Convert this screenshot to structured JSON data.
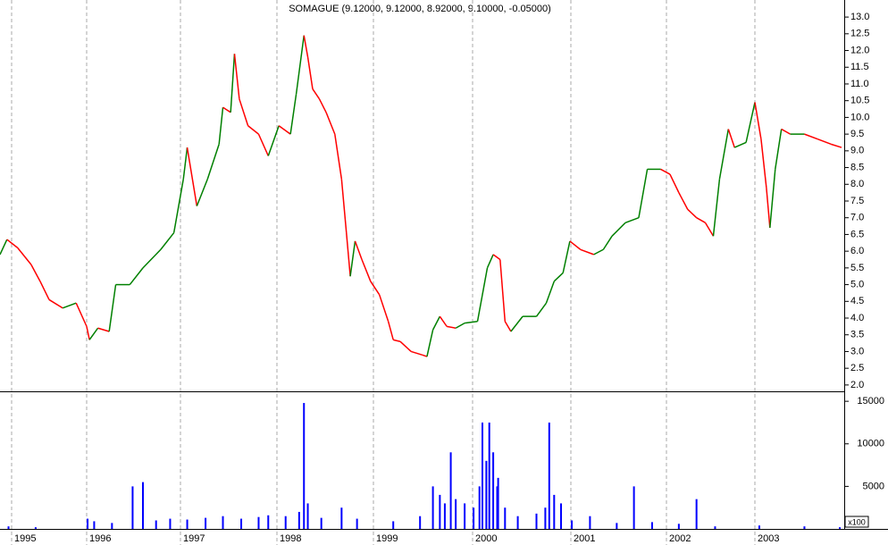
{
  "chart_data": [
    {
      "type": "line",
      "title": "SOMAGUE (9.12000, 9.12000, 8.92000, 9.10000, -0.05000)",
      "x": [
        1994.85,
        1994.94,
        1995.08,
        1995.26,
        1995.38,
        1995.5,
        1995.68,
        1995.86,
        1996.0,
        1996.03,
        1996.12,
        1996.24,
        1996.31,
        1996.46,
        1996.6,
        1996.79,
        1996.93,
        1997.03,
        1997.07,
        1997.17,
        1997.28,
        1997.4,
        1997.44,
        1997.52,
        1997.56,
        1997.61,
        1997.7,
        1997.81,
        1997.91,
        1998.02,
        1998.14,
        1998.2,
        1998.28,
        1998.32,
        1998.37,
        1998.44,
        1998.51,
        1998.6,
        1998.67,
        1998.72,
        1998.76,
        1998.81,
        1998.88,
        1998.97,
        1999.06,
        1999.15,
        1999.2,
        1999.27,
        1999.38,
        1999.49,
        1999.54,
        1999.6,
        1999.67,
        1999.74,
        1999.83,
        1999.92,
        2000.05,
        2000.15,
        2000.21,
        2000.28,
        2000.33,
        2000.39,
        2000.51,
        2000.65,
        2000.75,
        2000.83,
        2000.92,
        2000.99,
        2001.1,
        2001.24,
        2001.34,
        2001.43,
        2001.57,
        2001.71,
        2001.8,
        2001.94,
        2002.04,
        2002.14,
        2002.24,
        2002.34,
        2002.44,
        2002.53,
        2002.6,
        2002.7,
        2002.77,
        2002.9,
        2003.0,
        2003.07,
        2003.13,
        2003.17,
        2003.23,
        2003.3,
        2003.4,
        2003.56,
        2003.71,
        2003.86,
        2003.98
      ],
      "values": [
        5.9,
        6.35,
        6.1,
        5.6,
        5.1,
        4.55,
        4.3,
        4.45,
        3.75,
        3.35,
        3.7,
        3.6,
        5.0,
        5.0,
        5.5,
        6.05,
        6.55,
        8.15,
        9.1,
        7.35,
        8.15,
        9.2,
        10.3,
        10.15,
        11.9,
        10.55,
        9.75,
        9.5,
        8.85,
        9.75,
        9.5,
        10.7,
        12.45,
        11.8,
        10.85,
        10.55,
        10.15,
        9.5,
        8.15,
        6.55,
        5.25,
        6.3,
        5.75,
        5.1,
        4.7,
        3.9,
        3.35,
        3.3,
        3.0,
        2.9,
        2.85,
        3.65,
        4.05,
        3.75,
        3.7,
        3.85,
        3.9,
        5.5,
        5.9,
        5.75,
        3.9,
        3.6,
        4.05,
        4.05,
        4.45,
        5.1,
        5.35,
        6.3,
        6.05,
        5.9,
        6.05,
        6.45,
        6.85,
        7.0,
        8.45,
        8.45,
        8.3,
        7.75,
        7.25,
        7.0,
        6.85,
        6.45,
        8.15,
        9.65,
        9.1,
        9.25,
        10.45,
        9.35,
        7.9,
        6.7,
        8.45,
        9.65,
        9.5,
        9.5,
        9.35,
        9.2,
        9.1
      ],
      "up_color": "#008000",
      "down_color": "#ff0000",
      "xlim": [
        1994.85,
        2004.01
      ],
      "xticks": [
        1995,
        1996,
        1997,
        1998,
        1999,
        2000,
        2001,
        2002,
        2003
      ],
      "ylim": [
        1.81,
        13.51
      ],
      "yticks": [
        {
          "value": 2,
          "label": "2.0"
        },
        2.5,
        {
          "value": 3,
          "label": "3.0"
        },
        3.5,
        {
          "value": 4,
          "label": "4.0"
        },
        4.5,
        {
          "value": 5,
          "label": "5.0"
        },
        5.5,
        {
          "value": 6,
          "label": "6.0"
        },
        6.5,
        {
          "value": 7,
          "label": "7.0"
        },
        7.5,
        {
          "value": 8,
          "label": "8.0"
        },
        8.5,
        {
          "value": 9,
          "label": "9.0"
        },
        9.5,
        {
          "value": 10,
          "label": "10.0"
        },
        10.5,
        {
          "value": 11,
          "label": "11.0"
        },
        11.5,
        {
          "value": 12,
          "label": "12.0"
        },
        12.5,
        {
          "value": 13,
          "label": "13.0"
        }
      ],
      "grid": true
    },
    {
      "type": "bar",
      "x": [
        1994.96,
        1995.32,
        1996.01,
        1996.08,
        1996.27,
        1996.49,
        1996.6,
        1996.74,
        1996.89,
        1997.07,
        1997.26,
        1997.44,
        1997.63,
        1997.81,
        1997.91,
        1998.09,
        1998.23,
        1998.28,
        1998.32,
        1998.46,
        1998.67,
        1998.83,
        1999.2,
        1999.47,
        1999.6,
        1999.67,
        1999.72,
        1999.78,
        1999.83,
        1999.92,
        2000.01,
        2000.07,
        2000.1,
        2000.14,
        2000.17,
        2000.21,
        2000.25,
        2000.26,
        2000.33,
        2000.46,
        2000.65,
        2000.74,
        2000.78,
        2000.83,
        2000.9,
        2001.01,
        2001.2,
        2001.48,
        2001.66,
        2001.85,
        2002.14,
        2002.34,
        2002.55,
        2003.05,
        2003.56,
        2003.96
      ],
      "values": [
        300,
        200,
        1200,
        900,
        700,
        5000,
        5500,
        1000,
        1200,
        1100,
        1300,
        1500,
        1200,
        1400,
        1600,
        1500,
        2000,
        14800,
        3000,
        1300,
        2500,
        1200,
        900,
        1500,
        5000,
        4000,
        3000,
        9000,
        3500,
        3000,
        2500,
        5000,
        12500,
        8000,
        12500,
        9000,
        5000,
        6000,
        2500,
        1500,
        1800,
        2500,
        12500,
        4000,
        3000,
        1000,
        1500,
        700,
        5000,
        800,
        600,
        3500,
        300,
        400,
        300,
        200
      ],
      "color": "#0000ff",
      "xlim": [
        1994.85,
        2004.01
      ],
      "ylim": [
        0,
        16170
      ],
      "yticks": [
        5000,
        10000,
        15000
      ],
      "unit_label": "x100"
    }
  ]
}
